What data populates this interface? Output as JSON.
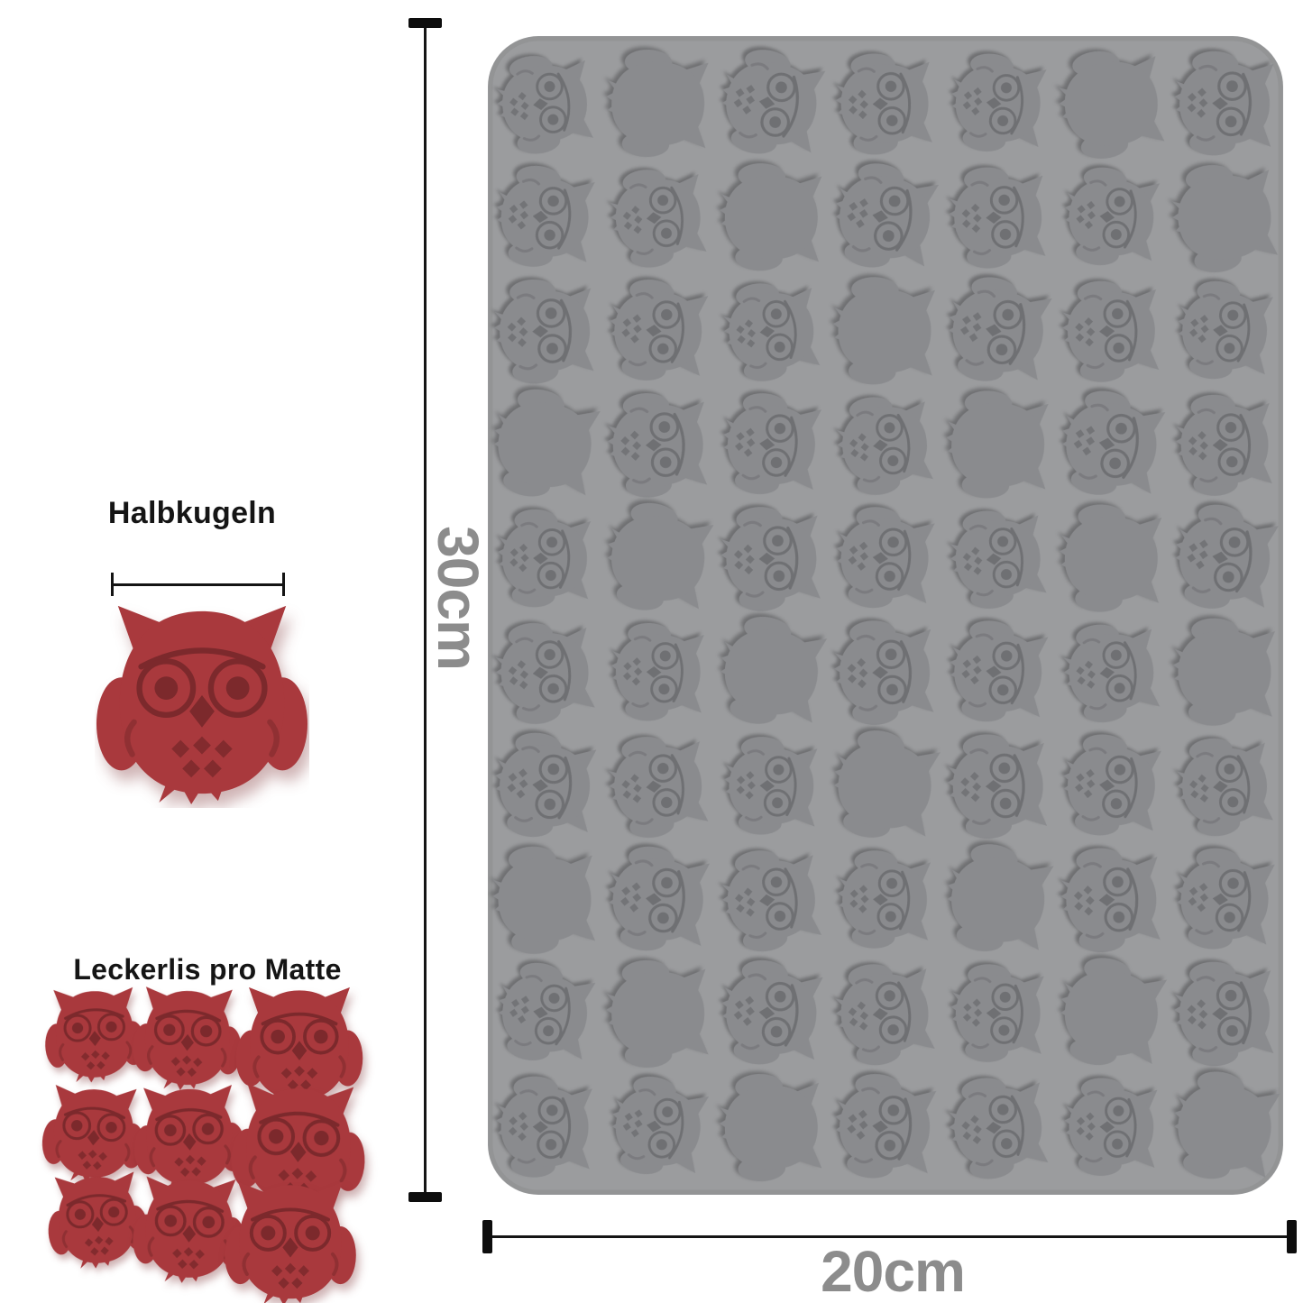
{
  "page": {
    "background_color": "#ffffff",
    "description_shape": "owl"
  },
  "left_panel": {
    "hemisphere": {
      "title": "Halbkugeln",
      "shape": "owl",
      "owl_color": "#a9393d"
    },
    "treats_per_mat": {
      "title": "Leckerlis pro Matte",
      "rows": 3,
      "cols": 3,
      "count": 9,
      "shape": "owl",
      "owl_color": "#a9393d"
    }
  },
  "mold": {
    "shape": "owl",
    "rows": 10,
    "cols": 7,
    "cavity_count": 70,
    "base_color": "#9b9c9e",
    "cavity_color": "#8a8b8e"
  },
  "dimensions": {
    "height": "30cm",
    "width": "20cm",
    "label_color": "#8c8c8c",
    "line_color": "#141414"
  }
}
